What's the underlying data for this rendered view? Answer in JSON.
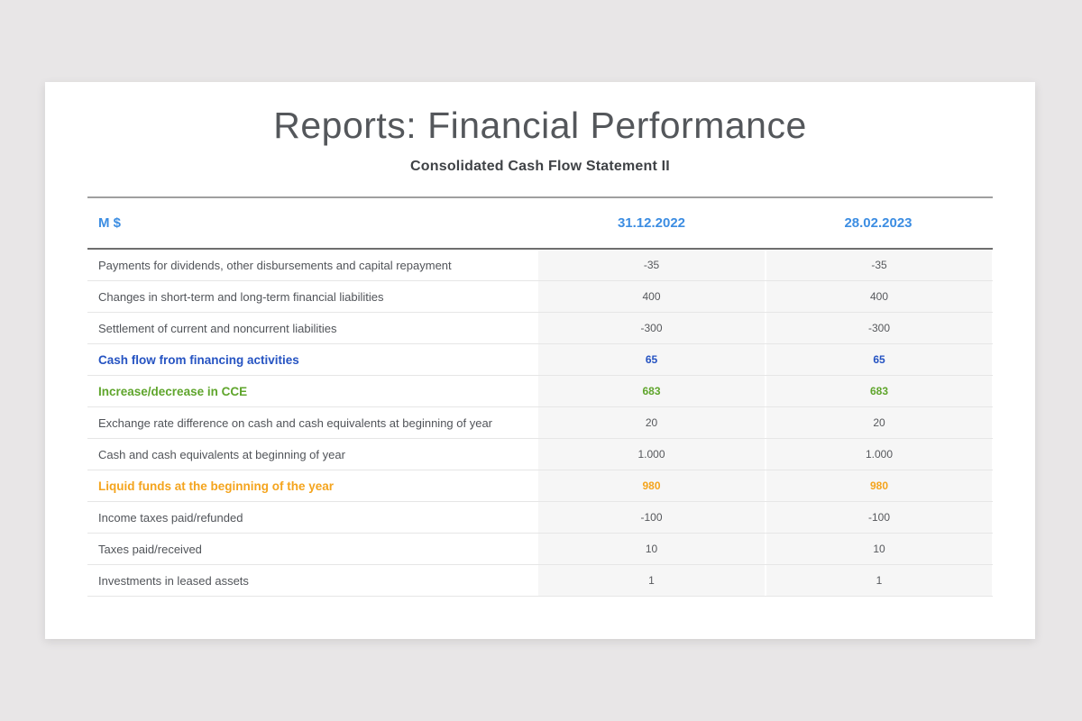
{
  "page": {
    "background_color": "#e8e6e7",
    "card_color": "#ffffff"
  },
  "header": {
    "title": "Reports: Financial Performance",
    "subtitle": "Consolidated Cash Flow Statement II"
  },
  "table": {
    "unit_label": "M $",
    "columns": [
      "31.12.2022",
      "28.02.2023"
    ],
    "accent_colors": {
      "header_blue": "#3c8de2",
      "financing_row_blue": "#2553c2",
      "cce_row_green": "#5fa52c",
      "liquid_funds_row_orange": "#f4a41d",
      "value_column_background": "#f6f6f6"
    },
    "rows": [
      {
        "label": "Payments for dividends, other disbursements and capital repayment",
        "values": [
          "-35",
          "-35"
        ],
        "style": "normal"
      },
      {
        "label": "Changes in short-term and long-term financial liabilities",
        "values": [
          "400",
          "400"
        ],
        "style": "normal"
      },
      {
        "label": "Settlement of current and noncurrent liabilities",
        "values": [
          "-300",
          "-300"
        ],
        "style": "normal"
      },
      {
        "label": "Cash flow from financing activities",
        "values": [
          "65",
          "65"
        ],
        "style": "blue"
      },
      {
        "label": "Increase/decrease in CCE",
        "values": [
          "683",
          "683"
        ],
        "style": "green"
      },
      {
        "label": "Exchange rate difference on cash and cash equivalents at beginning of year",
        "values": [
          "20",
          "20"
        ],
        "style": "normal"
      },
      {
        "label": "Cash and cash equivalents at beginning of year",
        "values": [
          "1.000",
          "1.000"
        ],
        "style": "normal"
      },
      {
        "label": "Liquid funds at the beginning of the year",
        "values": [
          "980",
          "980"
        ],
        "style": "orange"
      },
      {
        "label": "Income taxes paid/refunded",
        "values": [
          "-100",
          "-100"
        ],
        "style": "normal"
      },
      {
        "label": "Taxes paid/received",
        "values": [
          "10",
          "10"
        ],
        "style": "normal"
      },
      {
        "label": "Investments in leased assets",
        "values": [
          "1",
          "1"
        ],
        "style": "normal"
      }
    ]
  }
}
